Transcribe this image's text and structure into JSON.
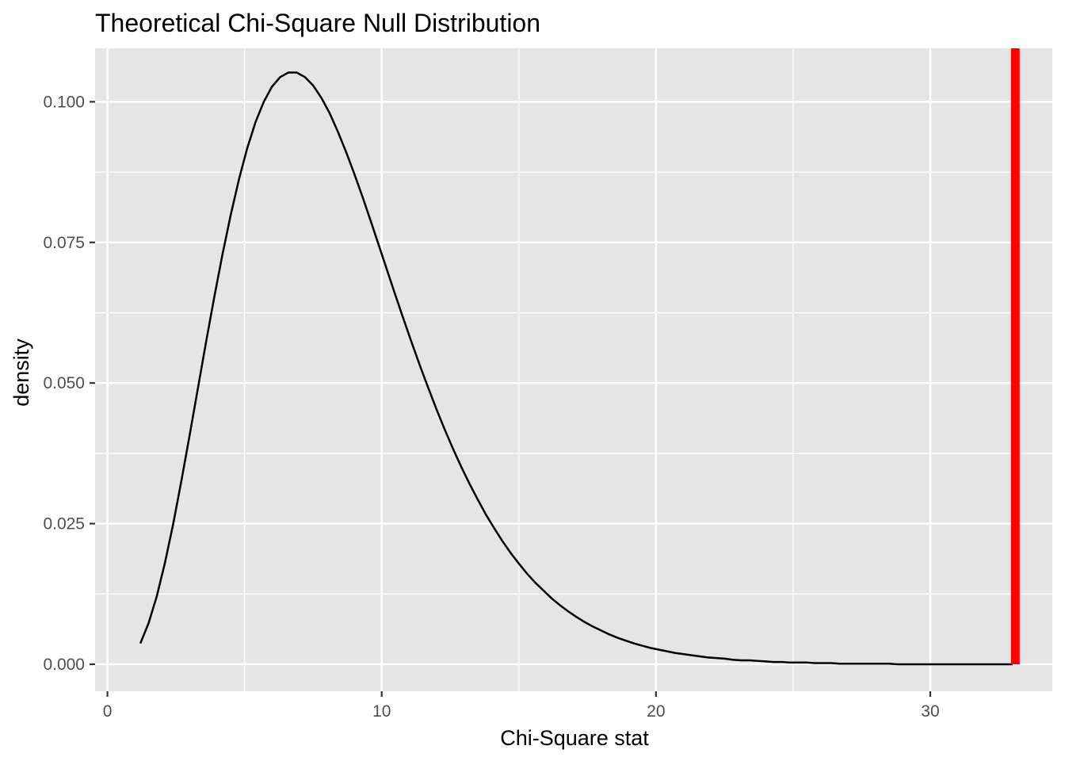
{
  "chart_data": {
    "type": "line",
    "title": "Theoretical Chi-Square Null Distribution",
    "xlabel": "Chi-Square stat",
    "ylabel": "density",
    "xlim": [
      -0.45,
      34.45
    ],
    "ylim": [
      -0.0048,
      0.1095
    ],
    "x_ticks": [
      0,
      10,
      20,
      30
    ],
    "x_tick_labels": [
      "0",
      "10",
      "20",
      "30"
    ],
    "y_ticks": [
      0.0,
      0.025,
      0.05,
      0.075,
      0.1
    ],
    "y_tick_labels": [
      "0.000",
      "0.025",
      "0.050",
      "0.075",
      "0.100"
    ],
    "grid": true,
    "legend": "none",
    "series": [
      {
        "degrees_of_freedom": 9,
        "x": [
          1.2,
          1.5,
          1.8,
          2.1,
          2.4,
          2.7,
          3.0,
          3.3,
          3.6,
          3.9,
          4.2,
          4.5,
          4.8,
          5.1,
          5.4,
          5.7,
          6.0,
          6.3,
          6.6,
          6.9,
          7.2,
          7.5,
          7.8,
          8.1,
          8.4,
          8.7,
          9.0,
          9.3,
          9.6,
          9.9,
          10.2,
          10.5,
          10.8,
          11.1,
          11.4,
          11.7,
          12.0,
          12.3,
          12.6,
          12.9,
          13.2,
          13.5,
          13.8,
          14.1,
          14.4,
          14.7,
          15.0,
          15.3,
          15.6,
          15.9,
          16.2,
          16.5,
          16.8,
          17.1,
          17.4,
          17.7,
          18.0,
          18.3,
          18.6,
          18.9,
          19.2,
          19.5,
          19.8,
          20.1,
          20.4,
          20.7,
          21.0,
          21.3,
          21.6,
          21.9,
          22.2,
          22.5,
          22.8,
          23.1,
          23.4,
          23.7,
          24.0,
          24.3,
          24.6,
          24.9,
          25.2,
          25.5,
          25.8,
          26.1,
          26.4,
          26.7,
          27.0,
          27.3,
          27.6,
          27.9,
          28.2,
          28.5,
          28.8,
          29.1,
          29.4,
          29.7,
          30.0,
          30.3,
          30.6,
          30.9,
          31.2,
          31.5,
          31.8,
          32.1,
          32.4,
          32.7,
          33.0
        ],
        "y": [
          0.0037,
          0.0073,
          0.0121,
          0.0181,
          0.025,
          0.0327,
          0.0408,
          0.0491,
          0.0574,
          0.0654,
          0.073,
          0.08,
          0.0863,
          0.0918,
          0.0964,
          0.1,
          0.1027,
          0.1044,
          0.1052,
          0.1052,
          0.1044,
          0.1029,
          0.1007,
          0.098,
          0.0947,
          0.0911,
          0.0872,
          0.0831,
          0.0788,
          0.0744,
          0.07,
          0.0656,
          0.0613,
          0.0571,
          0.053,
          0.0491,
          0.0453,
          0.0417,
          0.0383,
          0.0351,
          0.0321,
          0.0293,
          0.0266,
          0.0242,
          0.0219,
          0.0198,
          0.0179,
          0.0161,
          0.0145,
          0.0131,
          0.0117,
          0.0105,
          0.0094,
          0.0084,
          0.0075,
          0.0067,
          0.006,
          0.0053,
          0.0047,
          0.0042,
          0.0037,
          0.0033,
          0.0029,
          0.0026,
          0.0023,
          0.002,
          0.0018,
          0.0016,
          0.0014,
          0.0012,
          0.0011,
          0.001,
          0.0008,
          0.0007,
          0.0007,
          0.0006,
          0.0005,
          0.0004,
          0.0004,
          0.0003,
          0.0003,
          0.0003,
          0.0002,
          0.0002,
          0.0002,
          0.0001,
          0.0001,
          0.0001,
          0.0001,
          0.0001,
          0.0001,
          0.0001,
          0.0,
          0.0,
          0.0,
          0.0,
          0.0,
          0.0,
          0.0,
          0.0,
          0.0,
          0.0,
          0.0,
          0.0,
          0.0,
          0.0,
          0.0
        ],
        "color": "#000000"
      }
    ],
    "vline": {
      "x": 33.1,
      "color": "#ff0000"
    },
    "panel_background": "#e5e5e5",
    "grid_color": "#ffffff"
  }
}
